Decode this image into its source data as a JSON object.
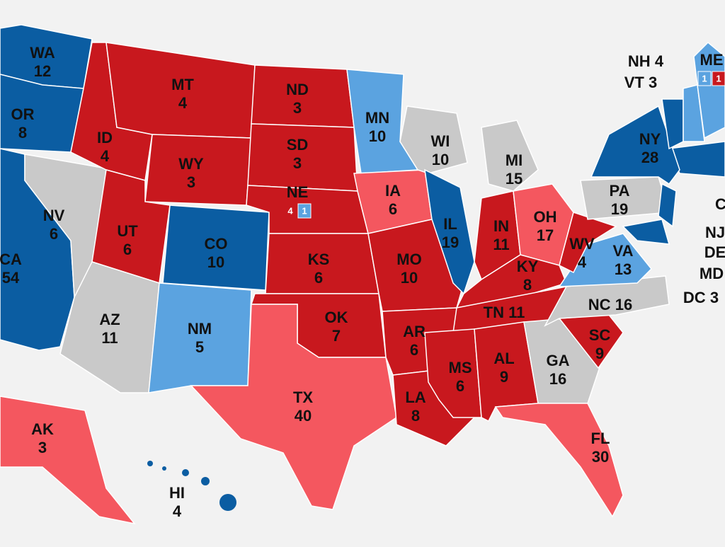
{
  "states": [
    {
      "label": "WA",
      "votes": 12,
      "color": "#0b5da2"
    },
    {
      "label": "OR",
      "votes": 8,
      "color": "#0b5da2"
    },
    {
      "label": "CA",
      "votes": 54,
      "color": "#0b5da2"
    },
    {
      "label": "NV",
      "votes": 6,
      "color": "#c9c9c9"
    },
    {
      "label": "ID",
      "votes": 4,
      "color": "#c8181e"
    },
    {
      "label": "MT",
      "votes": 4,
      "color": "#c8181e"
    },
    {
      "label": "WY",
      "votes": 3,
      "color": "#c8181e"
    },
    {
      "label": "UT",
      "votes": 6,
      "color": "#c8181e"
    },
    {
      "label": "CO",
      "votes": 10,
      "color": "#0b5da2"
    },
    {
      "label": "AZ",
      "votes": 11,
      "color": "#c9c9c9"
    },
    {
      "label": "NM",
      "votes": 5,
      "color": "#5ba3e0"
    },
    {
      "label": "ND",
      "votes": 3,
      "color": "#c8181e"
    },
    {
      "label": "SD",
      "votes": 3,
      "color": "#c8181e"
    },
    {
      "label": "NE",
      "color": "#c8181e",
      "splits": [
        {
          "value": 4
        },
        {
          "value": 1,
          "color": "#5ba3e0"
        }
      ]
    },
    {
      "label": "KS",
      "votes": 6,
      "color": "#c8181e"
    },
    {
      "label": "OK",
      "votes": 7,
      "color": "#c8181e"
    },
    {
      "label": "TX",
      "votes": 40,
      "color": "#f4575f"
    },
    {
      "label": "MN",
      "votes": 10,
      "color": "#5ba3e0"
    },
    {
      "label": "IA",
      "votes": 6,
      "color": "#f4575f"
    },
    {
      "label": "MO",
      "votes": 10,
      "color": "#c8181e"
    },
    {
      "label": "AR",
      "votes": 6,
      "color": "#c8181e"
    },
    {
      "label": "LA",
      "votes": 8,
      "color": "#c8181e"
    },
    {
      "label": "WI",
      "votes": 10,
      "color": "#c9c9c9"
    },
    {
      "label": "IL",
      "votes": 19,
      "color": "#0b5da2"
    },
    {
      "label": "MI",
      "votes": 15,
      "color": "#c9c9c9"
    },
    {
      "label": "IN",
      "votes": 11,
      "color": "#c8181e"
    },
    {
      "label": "OH",
      "votes": 17,
      "color": "#f4575f"
    },
    {
      "label": "KY",
      "votes": 8,
      "color": "#c8181e"
    },
    {
      "label": "TN",
      "votes": 11,
      "color": "#c8181e"
    },
    {
      "label": "MS",
      "votes": 6,
      "color": "#c8181e"
    },
    {
      "label": "AL",
      "votes": 9,
      "color": "#c8181e"
    },
    {
      "label": "GA",
      "votes": 16,
      "color": "#c9c9c9"
    },
    {
      "label": "FL",
      "votes": 30,
      "color": "#f4575f"
    },
    {
      "label": "SC",
      "votes": 9,
      "color": "#c8181e"
    },
    {
      "label": "NC",
      "votes": 16,
      "color": "#c9c9c9"
    },
    {
      "label": "VA",
      "votes": 13,
      "color": "#5ba3e0"
    },
    {
      "label": "WV",
      "votes": 4,
      "color": "#c8181e"
    },
    {
      "label": "PA",
      "votes": 19,
      "color": "#c9c9c9"
    },
    {
      "label": "NY",
      "votes": 28,
      "color": "#0b5da2"
    },
    {
      "label": "NJ",
      "color": "#0b5da2"
    },
    {
      "label": "MD",
      "color": "#0b5da2"
    },
    {
      "label": "DE"
    },
    {
      "label": "DC",
      "votes": 3
    },
    {
      "label": "C",
      "color": "#0b5da2"
    },
    {
      "label": "VT",
      "votes": 3,
      "color": "#0b5da2"
    },
    {
      "label": "NH",
      "votes": 4,
      "color": "#5ba3e0"
    },
    {
      "label": "ME",
      "color": "#5ba3e0",
      "splits": [
        {
          "value": 1,
          "color": "#5ba3e0"
        },
        {
          "value": 1,
          "color": "#c8181e"
        }
      ]
    },
    {
      "label": "AK",
      "votes": 3,
      "color": "#f4575f"
    },
    {
      "label": "HI",
      "votes": 4,
      "color": "#0b5da2"
    }
  ]
}
